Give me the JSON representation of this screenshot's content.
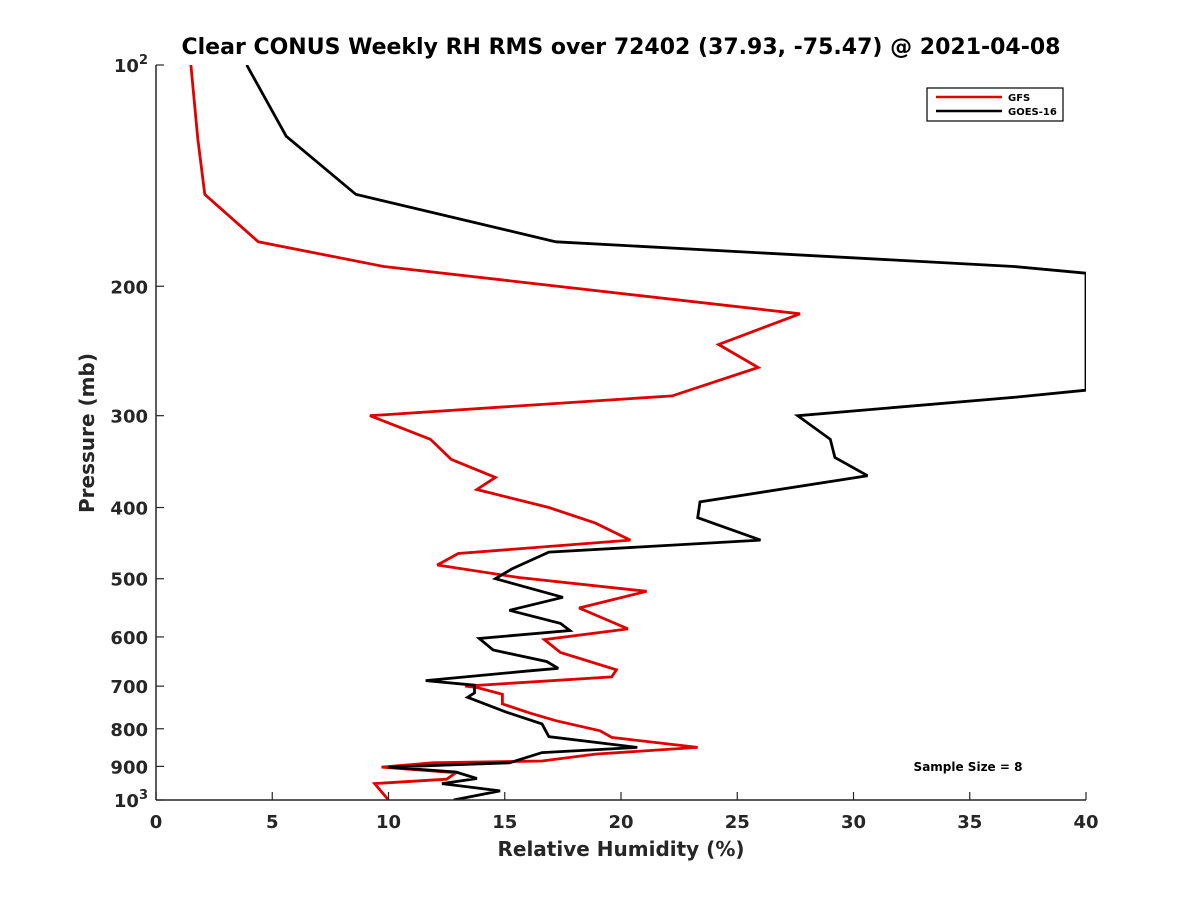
{
  "chart_data": {
    "type": "line",
    "title": "Clear CONUS Weekly RH RMS over 72402 (37.93, -75.47) @ 2021-04-08",
    "xlabel": "Relative Humidity (%)",
    "ylabel": "Pressure (mb)",
    "xlim": [
      0,
      40
    ],
    "ylim": [
      100,
      1000
    ],
    "y_scale": "log",
    "y_reversed": true,
    "x_ticks": [
      0,
      5,
      10,
      15,
      20,
      25,
      30,
      35,
      40
    ],
    "y_ticks": [
      {
        "value": 100,
        "label": "10",
        "sup": "2"
      },
      {
        "value": 200,
        "label": "200",
        "sup": ""
      },
      {
        "value": 300,
        "label": "300",
        "sup": ""
      },
      {
        "value": 400,
        "label": "400",
        "sup": ""
      },
      {
        "value": 500,
        "label": "500",
        "sup": ""
      },
      {
        "value": 600,
        "label": "600",
        "sup": ""
      },
      {
        "value": 700,
        "label": "700",
        "sup": ""
      },
      {
        "value": 800,
        "label": "800",
        "sup": ""
      },
      {
        "value": 900,
        "label": "900",
        "sup": ""
      },
      {
        "value": 1000,
        "label": "10",
        "sup": "3"
      }
    ],
    "legend_position": "top-right",
    "annotation": "Sample Size = 8",
    "series": [
      {
        "name": "GFS",
        "color": "#e00000",
        "points": [
          [
            1.5,
            100
          ],
          [
            1.8,
            126
          ],
          [
            2.1,
            150
          ],
          [
            4.4,
            174
          ],
          [
            9.8,
            188
          ],
          [
            27.7,
            218
          ],
          [
            24.2,
            240
          ],
          [
            25.9,
            258
          ],
          [
            22.2,
            282
          ],
          [
            9.2,
            300
          ],
          [
            11.8,
            323
          ],
          [
            12.7,
            344
          ],
          [
            14.6,
            364
          ],
          [
            13.8,
            378
          ],
          [
            16.9,
            400
          ],
          [
            18.9,
            420
          ],
          [
            20.4,
            443
          ],
          [
            13.0,
            462
          ],
          [
            12.1,
            479
          ],
          [
            15.6,
            498
          ],
          [
            21.1,
            520
          ],
          [
            18.2,
            548
          ],
          [
            20.3,
            585
          ],
          [
            16.7,
            605
          ],
          [
            17.4,
            630
          ],
          [
            19.8,
            665
          ],
          [
            19.6,
            680
          ],
          [
            13.3,
            700
          ],
          [
            13.8,
            703
          ],
          [
            14.9,
            718
          ],
          [
            14.9,
            740
          ],
          [
            16.1,
            762
          ],
          [
            17.2,
            780
          ],
          [
            19.1,
            805
          ],
          [
            19.6,
            822
          ],
          [
            23.3,
            848
          ],
          [
            18.9,
            866
          ],
          [
            16.6,
            885
          ],
          [
            11.9,
            890
          ],
          [
            9.7,
            902
          ],
          [
            12.9,
            918
          ],
          [
            12.5,
            937
          ],
          [
            9.4,
            950
          ],
          [
            10.0,
            1000
          ]
        ]
      },
      {
        "name": "GOES-16",
        "color": "#000000",
        "points": [
          [
            3.9,
            100
          ],
          [
            5.6,
            125
          ],
          [
            8.6,
            150
          ],
          [
            17.2,
            174
          ],
          [
            36.9,
            188
          ],
          [
            40.0,
            192
          ],
          [
            40.0,
            277
          ],
          [
            37.0,
            283
          ],
          [
            27.6,
            300
          ],
          [
            29.0,
            323
          ],
          [
            29.2,
            342
          ],
          [
            30.6,
            362
          ],
          [
            23.4,
            393
          ],
          [
            23.3,
            413
          ],
          [
            26.0,
            443
          ],
          [
            16.9,
            460
          ],
          [
            15.3,
            485
          ],
          [
            14.6,
            500
          ],
          [
            17.5,
            530
          ],
          [
            15.2,
            552
          ],
          [
            17.4,
            575
          ],
          [
            17.8,
            588
          ],
          [
            13.9,
            603
          ],
          [
            14.5,
            625
          ],
          [
            16.8,
            648
          ],
          [
            17.3,
            662
          ],
          [
            15.9,
            668
          ],
          [
            11.6,
            688
          ],
          [
            13.7,
            698
          ],
          [
            13.7,
            715
          ],
          [
            13.4,
            725
          ],
          [
            15.1,
            760
          ],
          [
            16.6,
            788
          ],
          [
            16.9,
            820
          ],
          [
            20.7,
            848
          ],
          [
            16.6,
            862
          ],
          [
            15.2,
            890
          ],
          [
            10.0,
            902
          ],
          [
            12.9,
            916
          ],
          [
            13.8,
            935
          ],
          [
            12.3,
            950
          ],
          [
            14.8,
            972
          ],
          [
            12.8,
            1000
          ]
        ]
      }
    ]
  }
}
